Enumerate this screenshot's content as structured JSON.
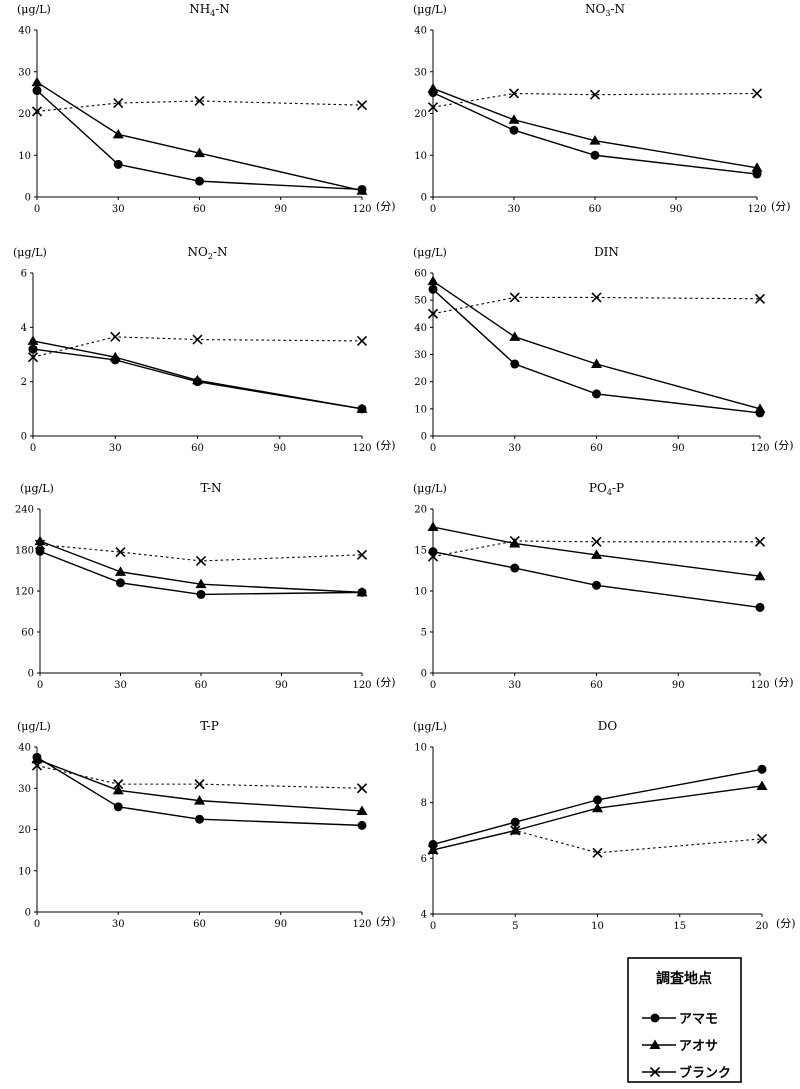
{
  "legend": {
    "title": "調査地点",
    "entries": [
      {
        "name": "アマモ",
        "marker": "circle",
        "dashed": false
      },
      {
        "name": "アオサ",
        "marker": "triangle",
        "dashed": false
      },
      {
        "name": "ブランク",
        "marker": "x",
        "dashed": true
      }
    ]
  },
  "chart_data": [
    {
      "type": "line",
      "title_main": "NH",
      "title_sub": "4",
      "title_rest": "-N",
      "ylabel": "(μg/L)",
      "xunit": "(分)",
      "ylim": [
        0,
        40
      ],
      "yticks": [
        0,
        10,
        20,
        30,
        40
      ],
      "xlim": [
        0,
        120
      ],
      "xticks": [
        0,
        30,
        60,
        90,
        120
      ],
      "x": [
        0,
        30,
        60,
        120
      ],
      "series": [
        {
          "name": "アマモ",
          "values": [
            25.5,
            7.8,
            3.8,
            1.8
          ]
        },
        {
          "name": "アオサ",
          "values": [
            27.5,
            15,
            10.5,
            1.5
          ]
        },
        {
          "name": "ブランク",
          "values": [
            20.5,
            22.5,
            23,
            22
          ]
        }
      ]
    },
    {
      "type": "line",
      "title_main": "NO",
      "title_sub": "3",
      "title_rest": "-N",
      "ylabel": "(μg/L)",
      "xunit": "(分)",
      "ylim": [
        0,
        40
      ],
      "yticks": [
        0,
        10,
        20,
        30,
        40
      ],
      "xlim": [
        0,
        120
      ],
      "xticks": [
        0,
        30,
        60,
        90,
        120
      ],
      "x": [
        0,
        30,
        60,
        120
      ],
      "series": [
        {
          "name": "アマモ",
          "values": [
            25,
            16,
            10,
            5.5
          ]
        },
        {
          "name": "アオサ",
          "values": [
            26,
            18.5,
            13.5,
            7
          ]
        },
        {
          "name": "ブランク",
          "values": [
            21.5,
            24.8,
            24.5,
            24.8
          ]
        }
      ]
    },
    {
      "type": "line",
      "title_main": "NO",
      "title_sub": "2",
      "title_rest": "-N",
      "ylabel": "(μg/L)",
      "xunit": "(分)",
      "ylim": [
        0,
        6
      ],
      "yticks": [
        0,
        2,
        4,
        6
      ],
      "xlim": [
        0,
        120
      ],
      "xticks": [
        0,
        30,
        60,
        90,
        120
      ],
      "x": [
        0,
        30,
        60,
        120
      ],
      "series": [
        {
          "name": "アマモ",
          "values": [
            3.2,
            2.8,
            2.0,
            1.0
          ]
        },
        {
          "name": "アオサ",
          "values": [
            3.5,
            2.9,
            2.05,
            1.0
          ]
        },
        {
          "name": "ブランク",
          "values": [
            2.9,
            3.65,
            3.55,
            3.5
          ]
        }
      ]
    },
    {
      "type": "line",
      "title_main": "DIN",
      "title_sub": "",
      "title_rest": "",
      "ylabel": "(μg/L)",
      "xunit": "(分)",
      "ylim": [
        0,
        60
      ],
      "yticks": [
        0,
        10,
        20,
        30,
        40,
        50,
        60
      ],
      "xlim": [
        0,
        120
      ],
      "xticks": [
        0,
        30,
        60,
        90,
        120
      ],
      "x": [
        0,
        30,
        60,
        120
      ],
      "series": [
        {
          "name": "アマモ",
          "values": [
            54,
            26.5,
            15.5,
            8.5
          ]
        },
        {
          "name": "アオサ",
          "values": [
            57,
            36.5,
            26.5,
            10
          ]
        },
        {
          "name": "ブランク",
          "values": [
            45,
            51,
            51,
            50.5
          ]
        }
      ]
    },
    {
      "type": "line",
      "title_main": "T-N",
      "title_sub": "",
      "title_rest": "",
      "ylabel": "(μg/L)",
      "xunit": "(分)",
      "ylim": [
        0,
        240
      ],
      "yticks": [
        0,
        60,
        120,
        180,
        240
      ],
      "xlim": [
        0,
        120
      ],
      "xticks": [
        0,
        30,
        60,
        90,
        120
      ],
      "x": [
        0,
        30,
        60,
        120
      ],
      "series": [
        {
          "name": "アマモ",
          "values": [
            178,
            132,
            115,
            118
          ]
        },
        {
          "name": "アオサ",
          "values": [
            193,
            148,
            130,
            118
          ]
        },
        {
          "name": "ブランク",
          "values": [
            188,
            177,
            164,
            173
          ]
        }
      ]
    },
    {
      "type": "line",
      "title_main": "PO",
      "title_sub": "4",
      "title_rest": "-P",
      "ylabel": "(μg/L)",
      "xunit": "(分)",
      "ylim": [
        0,
        20
      ],
      "yticks": [
        0,
        5,
        10,
        15,
        20
      ],
      "xlim": [
        0,
        120
      ],
      "xticks": [
        0,
        30,
        60,
        90,
        120
      ],
      "x": [
        0,
        30,
        60,
        120
      ],
      "series": [
        {
          "name": "アマモ",
          "values": [
            14.8,
            12.8,
            10.7,
            8.0
          ]
        },
        {
          "name": "アオサ",
          "values": [
            17.8,
            15.8,
            14.4,
            11.8
          ]
        },
        {
          "name": "ブランク",
          "values": [
            14.2,
            16.1,
            16.0,
            16.0
          ]
        }
      ]
    },
    {
      "type": "line",
      "title_main": "T-P",
      "title_sub": "",
      "title_rest": "",
      "ylabel": "(μg/L)",
      "xunit": "(分)",
      "ylim": [
        0,
        40
      ],
      "yticks": [
        0,
        10,
        20,
        30,
        40
      ],
      "xlim": [
        0,
        120
      ],
      "xticks": [
        0,
        30,
        60,
        90,
        120
      ],
      "x": [
        0,
        30,
        60,
        120
      ],
      "series": [
        {
          "name": "アマモ",
          "values": [
            37.5,
            25.5,
            22.5,
            21
          ]
        },
        {
          "name": "アオサ",
          "values": [
            37,
            29.5,
            27,
            24.5
          ]
        },
        {
          "name": "ブランク",
          "values": [
            35.5,
            31,
            31,
            30
          ]
        }
      ]
    },
    {
      "type": "line",
      "title_main": "DO",
      "title_sub": "",
      "title_rest": "",
      "ylabel": "(μg/L)",
      "xunit": "(分)",
      "ylim": [
        4,
        10
      ],
      "yticks": [
        4,
        6,
        8,
        10
      ],
      "xlim": [
        0,
        20
      ],
      "xticks": [
        0,
        5,
        10,
        15,
        20
      ],
      "x": [
        0,
        5,
        10,
        20
      ],
      "series": [
        {
          "name": "アマモ",
          "values": [
            6.5,
            7.3,
            8.1,
            9.2
          ]
        },
        {
          "name": "アオサ",
          "values": [
            6.3,
            7.0,
            7.8,
            8.6
          ]
        },
        {
          "name": "ブランク",
          "values": [
            6.3,
            7.0,
            6.2,
            6.7
          ]
        }
      ]
    }
  ]
}
